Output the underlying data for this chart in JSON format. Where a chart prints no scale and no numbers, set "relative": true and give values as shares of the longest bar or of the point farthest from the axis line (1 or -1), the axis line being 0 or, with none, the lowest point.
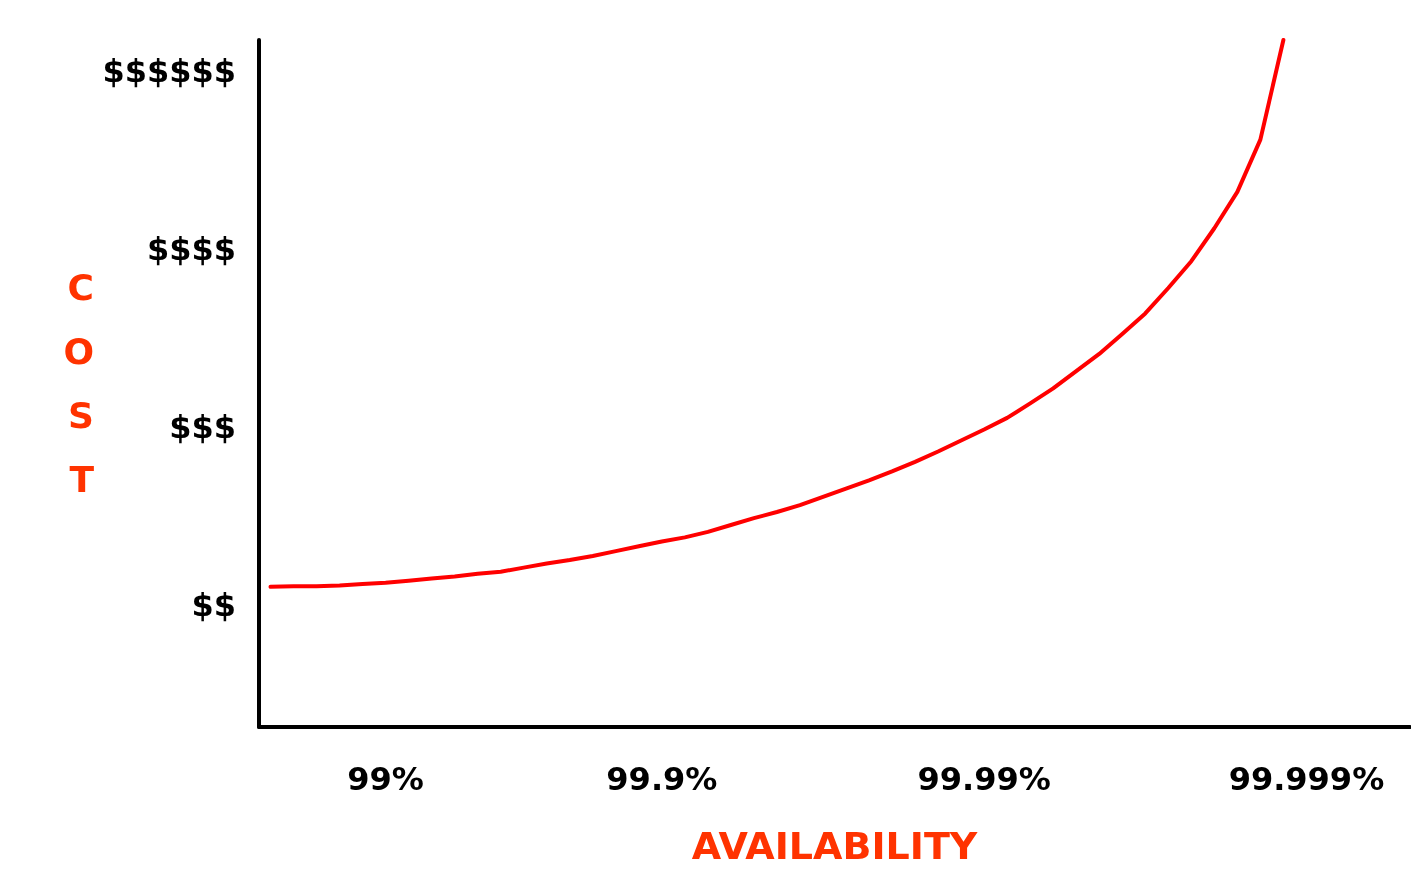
{
  "chart_data": {
    "type": "line",
    "relative": true,
    "xlabel": "AVAILABILITY",
    "ylabel": "COST",
    "categories": [
      null,
      null,
      null,
      null,
      null,
      "99%",
      null,
      null,
      null,
      null,
      null,
      null,
      null,
      null,
      null,
      null,
      null,
      "99.9%",
      null,
      null,
      null,
      null,
      null,
      null,
      null,
      null,
      null,
      null,
      null,
      null,
      null,
      "99.99%",
      null,
      null,
      null,
      null,
      null,
      null,
      null,
      null,
      null,
      null,
      null,
      null,
      null,
      "99.999%",
      null,
      null,
      null,
      null
    ],
    "values": [
      0.204,
      0.205,
      0.205,
      0.206,
      0.208,
      0.21,
      0.213,
      0.216,
      0.219,
      0.223,
      0.226,
      0.232,
      0.238,
      0.243,
      0.249,
      0.256,
      0.263,
      0.27,
      0.276,
      0.284,
      0.294,
      0.304,
      0.313,
      0.323,
      0.335,
      0.347,
      0.359,
      0.372,
      0.386,
      0.401,
      0.417,
      0.433,
      0.45,
      0.471,
      0.493,
      0.518,
      0.543,
      0.572,
      0.602,
      0.639,
      0.678,
      0.726,
      0.779,
      0.855,
      1.0,
      null,
      null,
      null,
      null,
      null
    ],
    "annotations": [
      "$$$$$$",
      "$$$$",
      "$$$",
      "$$"
    ],
    "color": "#ff0000",
    "grid": false,
    "marker": "none",
    "line_style": "solid"
  }
}
